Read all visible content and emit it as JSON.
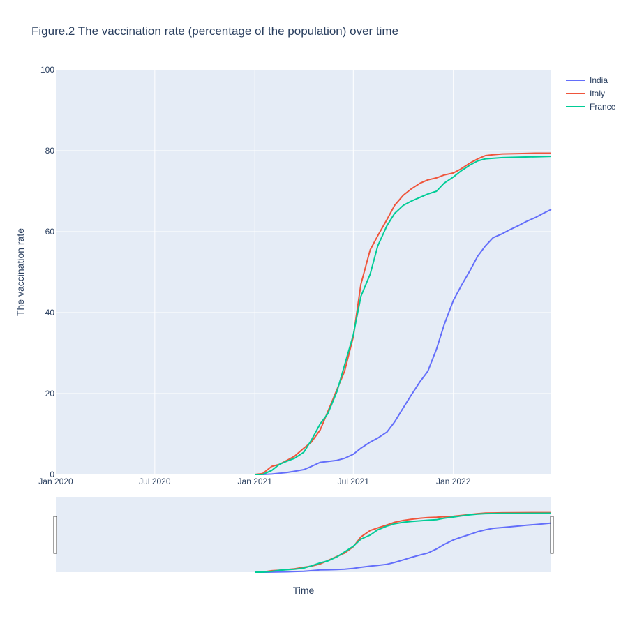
{
  "chart_data": {
    "type": "line",
    "title": "Figure.2 The vaccination rate (percentage of the population) over time",
    "xlabel": "Time",
    "ylabel": "The vaccination rate",
    "xlim": [
      "2020-01-01",
      "2022-06-30"
    ],
    "ylim": [
      0,
      100
    ],
    "y_ticks": [
      0,
      20,
      40,
      60,
      80,
      100
    ],
    "x_ticks": [
      {
        "date": "2020-01-01",
        "label": "Jan 2020"
      },
      {
        "date": "2020-07-01",
        "label": "Jul 2020"
      },
      {
        "date": "2021-01-01",
        "label": "Jan 2021"
      },
      {
        "date": "2021-07-01",
        "label": "Jul 2021"
      },
      {
        "date": "2022-01-01",
        "label": "Jan 2022"
      }
    ],
    "grid": true,
    "legend_position": "top-right",
    "range_slider": true,
    "colors": {
      "plot_bg": "#e5ecf6",
      "grid": "#ffffff",
      "text": "#2a3f5f"
    },
    "series": [
      {
        "name": "India",
        "color": "#636efa",
        "x": [
          "2021-01-16",
          "2021-02-01",
          "2021-03-01",
          "2021-03-15",
          "2021-04-01",
          "2021-04-15",
          "2021-05-01",
          "2021-05-15",
          "2021-06-01",
          "2021-06-15",
          "2021-07-01",
          "2021-07-15",
          "2021-08-01",
          "2021-08-15",
          "2021-09-01",
          "2021-09-15",
          "2021-10-01",
          "2021-10-15",
          "2021-11-01",
          "2021-11-15",
          "2021-12-01",
          "2021-12-15",
          "2022-01-01",
          "2022-01-15",
          "2022-02-01",
          "2022-02-15",
          "2022-03-01",
          "2022-03-15",
          "2022-04-01",
          "2022-04-15",
          "2022-05-01",
          "2022-05-15",
          "2022-06-01",
          "2022-06-15",
          "2022-06-30"
        ],
        "y": [
          0.0,
          0.1,
          0.5,
          0.8,
          1.2,
          2.0,
          3.0,
          3.2,
          3.5,
          4.0,
          5.0,
          6.5,
          8.0,
          9.0,
          10.5,
          13.0,
          16.5,
          19.5,
          23.0,
          25.5,
          31.0,
          37.0,
          43.0,
          46.5,
          50.5,
          54.0,
          56.5,
          58.5,
          59.5,
          60.5,
          61.5,
          62.5,
          63.5,
          64.5,
          65.5
        ]
      },
      {
        "name": "Italy",
        "color": "#ef553b",
        "x": [
          "2021-01-01",
          "2021-01-15",
          "2021-02-01",
          "2021-02-15",
          "2021-03-01",
          "2021-03-15",
          "2021-04-01",
          "2021-04-15",
          "2021-05-01",
          "2021-05-15",
          "2021-06-01",
          "2021-06-15",
          "2021-07-01",
          "2021-07-15",
          "2021-08-01",
          "2021-08-15",
          "2021-09-01",
          "2021-09-15",
          "2021-10-01",
          "2021-10-15",
          "2021-11-01",
          "2021-11-15",
          "2021-12-01",
          "2021-12-15",
          "2022-01-01",
          "2022-01-15",
          "2022-02-01",
          "2022-02-15",
          "2022-03-01",
          "2022-03-15",
          "2022-04-01",
          "2022-05-01",
          "2022-06-01",
          "2022-06-30"
        ],
        "y": [
          0.0,
          0.2,
          2.0,
          2.5,
          3.5,
          4.5,
          6.5,
          8.0,
          11.0,
          15.5,
          21.0,
          25.5,
          34.0,
          47.0,
          55.5,
          59.0,
          63.0,
          66.5,
          69.0,
          70.5,
          72.0,
          72.8,
          73.3,
          74.0,
          74.5,
          75.5,
          77.0,
          78.0,
          78.8,
          79.0,
          79.2,
          79.3,
          79.4,
          79.4
        ]
      },
      {
        "name": "France",
        "color": "#00cc96",
        "x": [
          "2021-01-01",
          "2021-01-15",
          "2021-02-01",
          "2021-02-15",
          "2021-03-01",
          "2021-03-15",
          "2021-04-01",
          "2021-04-15",
          "2021-05-01",
          "2021-05-15",
          "2021-06-01",
          "2021-06-15",
          "2021-07-01",
          "2021-07-15",
          "2021-08-01",
          "2021-08-15",
          "2021-09-01",
          "2021-09-15",
          "2021-10-01",
          "2021-10-15",
          "2021-11-01",
          "2021-11-15",
          "2021-12-01",
          "2021-12-15",
          "2022-01-01",
          "2022-01-15",
          "2022-02-01",
          "2022-02-15",
          "2022-03-01",
          "2022-04-01",
          "2022-05-01",
          "2022-06-01",
          "2022-06-30"
        ],
        "y": [
          0.0,
          0.0,
          1.0,
          2.5,
          3.3,
          4.0,
          5.5,
          8.5,
          12.5,
          15.0,
          20.5,
          27.0,
          34.5,
          44.0,
          49.5,
          56.5,
          61.5,
          64.5,
          66.5,
          67.5,
          68.5,
          69.3,
          70.0,
          72.0,
          73.5,
          75.0,
          76.5,
          77.5,
          78.0,
          78.3,
          78.4,
          78.5,
          78.6
        ]
      }
    ]
  }
}
